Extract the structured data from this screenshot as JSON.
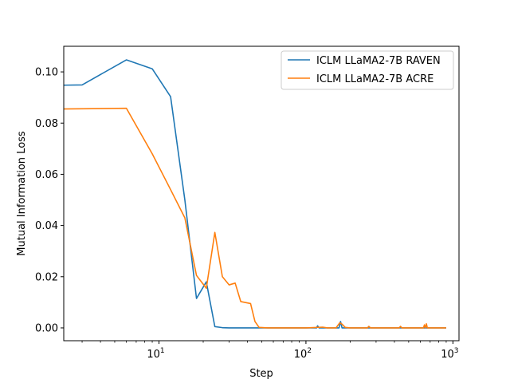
{
  "chart_data": {
    "type": "line",
    "title": "",
    "xlabel": "Step",
    "ylabel": "Mutual Information Loss",
    "xscale": "log",
    "xlim": [
      2.25,
      1100
    ],
    "ylim": [
      -0.005,
      0.11
    ],
    "x_ticks": [
      {
        "value": 10,
        "base": "10",
        "exp": "1"
      },
      {
        "value": 100,
        "base": "10",
        "exp": "2"
      },
      {
        "value": 1000,
        "base": "10",
        "exp": "3"
      }
    ],
    "y_ticks": [
      {
        "value": 0.0,
        "label": "0.00"
      },
      {
        "value": 0.02,
        "label": "0.02"
      },
      {
        "value": 0.04,
        "label": "0.04"
      },
      {
        "value": 0.06,
        "label": "0.06"
      },
      {
        "value": 0.08,
        "label": "0.08"
      },
      {
        "value": 0.1,
        "label": "0.10"
      }
    ],
    "grid": false,
    "legend_position": "top-right",
    "series": [
      {
        "name": "ICLM LLaMA2-7B RAVEN",
        "color": "#1f77b4",
        "points": [
          [
            2.2,
            0.0948
          ],
          [
            3,
            0.0949
          ],
          [
            6,
            0.1047
          ],
          [
            9,
            0.1012
          ],
          [
            12,
            0.0903
          ],
          [
            15,
            0.05
          ],
          [
            18,
            0.0115
          ],
          [
            21,
            0.018
          ],
          [
            24,
            0.0005
          ],
          [
            27,
            0.0001
          ],
          [
            30,
            0.0
          ],
          [
            40,
            0.0
          ],
          [
            60,
            0.0
          ],
          [
            100,
            0.0
          ],
          [
            118,
            0.0
          ],
          [
            120,
            0.0008
          ],
          [
            123,
            0.0
          ],
          [
            150,
            0.0
          ],
          [
            168,
            0.0
          ],
          [
            172,
            0.0025
          ],
          [
            176,
            0.0
          ],
          [
            200,
            0.0
          ],
          [
            300,
            0.0
          ],
          [
            500,
            0.0
          ],
          [
            700,
            0.0
          ],
          [
            900,
            0.0
          ]
        ]
      },
      {
        "name": "ICLM LLaMA2-7B ACRE",
        "color": "#ff7f0e",
        "points": [
          [
            2.2,
            0.0855
          ],
          [
            6,
            0.0858
          ],
          [
            9,
            0.068
          ],
          [
            12,
            0.054
          ],
          [
            15,
            0.043
          ],
          [
            18,
            0.0205
          ],
          [
            21,
            0.0155
          ],
          [
            24,
            0.0373
          ],
          [
            27,
            0.02
          ],
          [
            30,
            0.0168
          ],
          [
            33,
            0.0175
          ],
          [
            36,
            0.0103
          ],
          [
            42,
            0.0095
          ],
          [
            45,
            0.0025
          ],
          [
            48,
            0.0002
          ],
          [
            55,
            0.0
          ],
          [
            100,
            0.0
          ],
          [
            130,
            0.0003
          ],
          [
            140,
            0.0
          ],
          [
            160,
            0.0
          ],
          [
            170,
            0.002
          ],
          [
            176,
            0.0015
          ],
          [
            185,
            0.0002
          ],
          [
            200,
            0.0
          ],
          [
            262,
            0.0
          ],
          [
            268,
            0.0006
          ],
          [
            275,
            0.0
          ],
          [
            430,
            0.0
          ],
          [
            440,
            0.0006
          ],
          [
            450,
            0.0
          ],
          [
            630,
            0.0
          ],
          [
            640,
            0.0012
          ],
          [
            650,
            0.0
          ],
          [
            660,
            0.0016
          ],
          [
            670,
            0.0
          ],
          [
            900,
            0.0
          ]
        ]
      }
    ]
  }
}
